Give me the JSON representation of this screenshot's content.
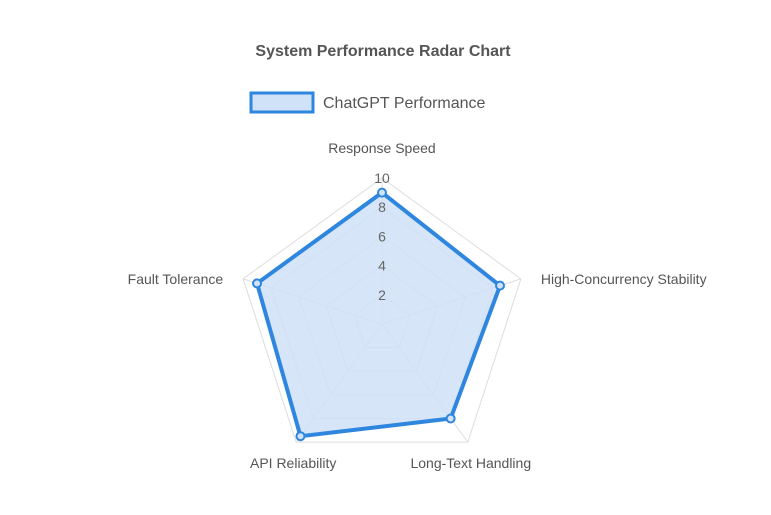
{
  "chart_data": {
    "type": "radar",
    "title": "System Performance Radar Chart",
    "axes": [
      "Response Speed",
      "High-Concurrency Stability",
      "Long-Text Handling",
      "API Reliability",
      "Fault Tolerance"
    ],
    "series": [
      {
        "name": "ChatGPT Performance",
        "values": [
          9,
          8.5,
          8,
          9.5,
          9
        ],
        "border_color": "#2e86de",
        "fill_color": "#cfe2f7"
      }
    ],
    "r_range": [
      0,
      10
    ],
    "ticks": [
      "2",
      "4",
      "6",
      "8",
      "10"
    ],
    "grid": true,
    "legend_position": "top"
  }
}
